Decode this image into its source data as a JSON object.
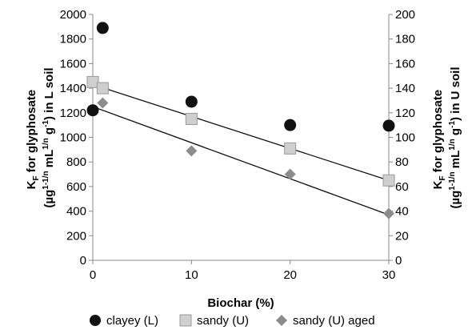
{
  "chart_data": {
    "type": "scatter",
    "x_axis": {
      "label": "Biochar (%)",
      "range": [
        0,
        30
      ],
      "ticks": [
        0,
        10,
        20,
        30
      ],
      "tick_labels": [
        "0",
        "10",
        "20",
        "30"
      ]
    },
    "y_axis_left": {
      "label_line1": "K",
      "label_sub": "F",
      "label_line1_rest": " for glyphosate",
      "label_line2": "(µg",
      "label_sup1": "1-1/n",
      "label_mid": " mL",
      "label_sup2": "1/n",
      "label_mid2": " g",
      "label_sup3": "-1",
      "label_end": ") in L soil",
      "range": [
        0,
        2000
      ],
      "ticks": [
        0,
        200,
        400,
        600,
        800,
        1000,
        1200,
        1400,
        1600,
        1800,
        2000
      ],
      "tick_labels": [
        "0",
        "200",
        "400",
        "600",
        "800",
        "1000",
        "1200",
        "1400",
        "1600",
        "1800",
        "2000"
      ]
    },
    "y_axis_right": {
      "label_line1": "K",
      "label_sub": "F",
      "label_line1_rest": " for glyphosate",
      "label_line2": "(µg",
      "label_sup1": "1-1/n",
      "label_mid": " mL",
      "label_sup2": "1/n",
      "label_mid2": " g",
      "label_sup3": "-1",
      "label_end": ") in U soil",
      "range": [
        0,
        200
      ],
      "ticks": [
        0,
        20,
        40,
        60,
        80,
        100,
        120,
        140,
        160,
        180,
        200
      ],
      "tick_labels": [
        "0",
        "20",
        "40",
        "60",
        "80",
        "100",
        "120",
        "140",
        "160",
        "180",
        "200"
      ]
    },
    "series": [
      {
        "name": "clayey (L)",
        "axis": "left",
        "marker": "circle",
        "color": "#111111",
        "points": [
          [
            0,
            1220
          ],
          [
            1,
            1890
          ],
          [
            10,
            1290
          ],
          [
            20,
            1100
          ],
          [
            30,
            1095
          ]
        ]
      },
      {
        "name": "sandy (U)",
        "axis": "right",
        "marker": "square",
        "color": "#cfcfcf",
        "stroke": "#9a9a9a",
        "points": [
          [
            0,
            145
          ],
          [
            1,
            140
          ],
          [
            10,
            115
          ],
          [
            20,
            91
          ],
          [
            30,
            65
          ]
        ],
        "trendline": [
          [
            0,
            143
          ],
          [
            30,
            65
          ]
        ]
      },
      {
        "name": "sandy (U) aged",
        "axis": "right",
        "marker": "diamond",
        "color": "#8c8c8c",
        "points": [
          [
            1,
            128
          ],
          [
            10,
            89
          ],
          [
            20,
            70
          ],
          [
            30,
            38
          ]
        ],
        "trendline": [
          [
            0,
            125
          ],
          [
            30,
            37
          ]
        ]
      }
    ],
    "legend_position": "bottom",
    "grid": false
  }
}
